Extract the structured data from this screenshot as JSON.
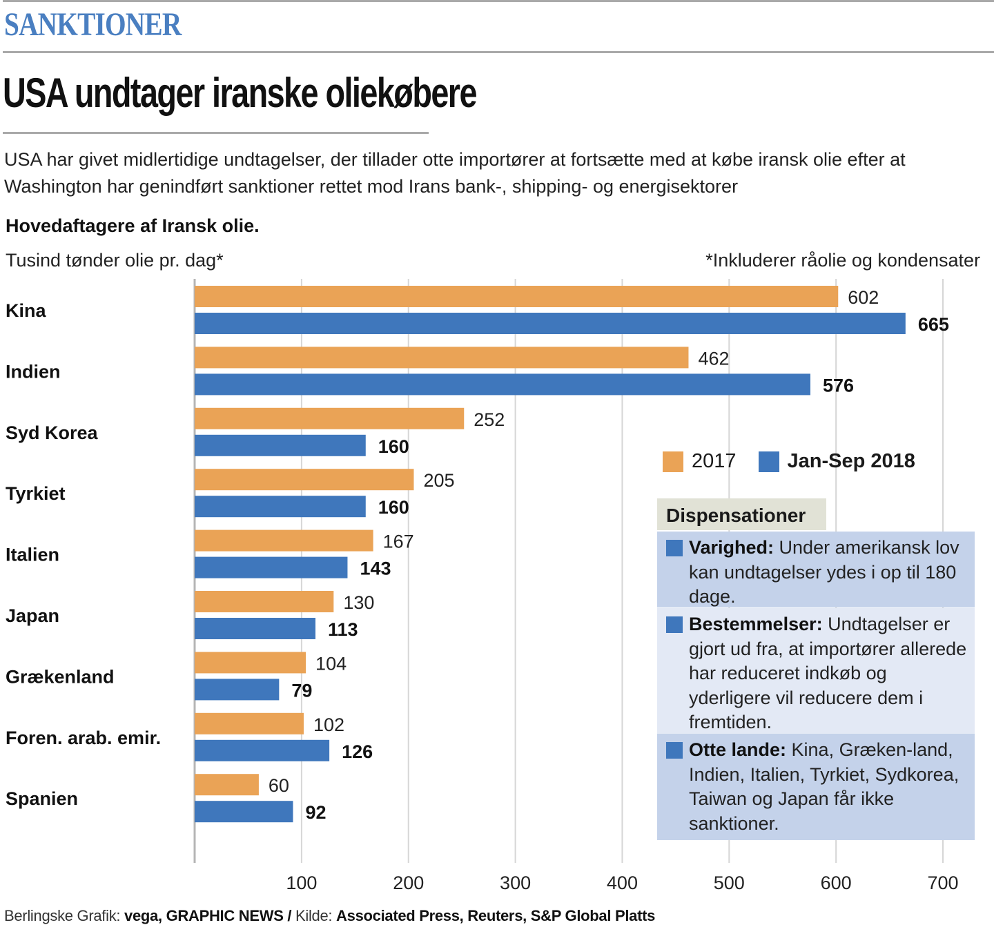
{
  "header": {
    "kicker": "SANKTIONER",
    "headline": "USA undtager iranske oliekøbere",
    "intro": "USA har givet midlertidige undtagelser, der tillader otte importører at fortsætte med at købe iransk olie efter at Washington har genindført sanktioner rettet mod Irans bank-, shipping- og energisektorer"
  },
  "chart_data": {
    "type": "bar",
    "orientation": "horizontal",
    "title": "Hovedaftagere af Iransk olie.",
    "unit_label": "Tusind tønder olie pr. dag*",
    "footnote": "*Inkluderer råolie og kondensater",
    "categories": [
      "Kina",
      "Indien",
      "Syd Korea",
      "Tyrkiet",
      "Italien",
      "Japan",
      "Grækenland",
      "Foren. arab. emir.",
      "Spanien"
    ],
    "series": [
      {
        "name": "2017",
        "color": "#eaa356",
        "values": [
          602,
          462,
          252,
          205,
          167,
          130,
          104,
          102,
          60
        ]
      },
      {
        "name": "Jan-Sep 2018",
        "color": "#3f77bc",
        "values": [
          665,
          576,
          160,
          160,
          143,
          113,
          79,
          126,
          92
        ]
      }
    ],
    "xlim": [
      0,
      700
    ],
    "xticks": [
      100,
      200,
      300,
      400,
      500,
      600,
      700
    ],
    "grid": true,
    "legend_position": "right"
  },
  "dispensations": {
    "title": "Dispensationer",
    "items": [
      {
        "label": "Varighed:",
        "text": "Under amerikansk lov kan undtagelser ydes i op til 180 dage."
      },
      {
        "label": "Bestemmelser:",
        "text": "Undtagelser er gjort ud fra, at importører allerede har reduceret indkøb og yderligere vil reducere dem i fremtiden."
      },
      {
        "label": "Otte lande:",
        "text": "Kina, Græken-land, Indien, Italien, Tyrkiet, Sydkorea, Taiwan og Japan får ikke sanktioner."
      }
    ]
  },
  "source": {
    "prefix": "Berlingske Grafik:",
    "credit": "vega, GRAPHIC NEWS",
    "sep": "/",
    "kilde_label": "Kilde:",
    "kilde": "Associated Press, Reuters, S&P Global Platts"
  }
}
